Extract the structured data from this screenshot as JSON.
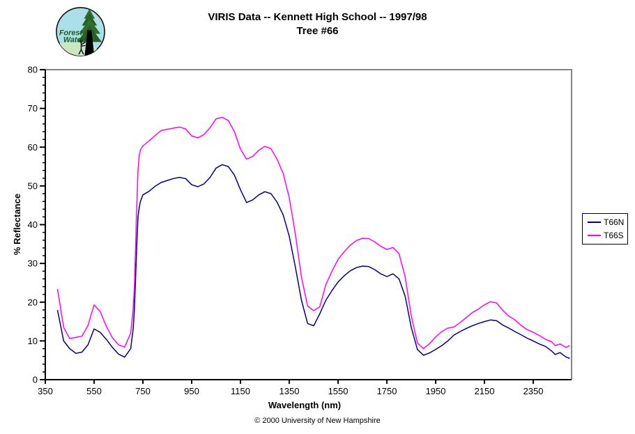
{
  "page": {
    "title_line1": "VIRIS Data -- Kennett High School -- 1997/98",
    "title_line2": "Tree #66",
    "footer": "© 2000 University of New Hampshire"
  },
  "logo": {
    "line1": "Forest",
    "line2": "Watch"
  },
  "chart_data": {
    "type": "line",
    "title": "VIRIS Data -- Kennett High School -- 1997/98 / Tree #66",
    "xlabel": "Wavelength (nm)",
    "ylabel": "% Reflectance",
    "xlim": [
      350,
      2507
    ],
    "ylim": [
      0,
      80
    ],
    "x_ticks": [
      350,
      550,
      750,
      950,
      1150,
      1350,
      1550,
      1750,
      1950,
      2150,
      2350
    ],
    "y_ticks": [
      0,
      10,
      20,
      30,
      40,
      50,
      60,
      70,
      80
    ],
    "y_minor_step": 2,
    "grid": false,
    "legend_position": "right-outside",
    "axis_color": "#000000",
    "border_color": "#848484",
    "x": [
      400,
      425,
      450,
      475,
      500,
      525,
      550,
      575,
      600,
      625,
      650,
      675,
      700,
      710,
      715,
      720,
      725,
      730,
      735,
      740,
      750,
      775,
      800,
      825,
      850,
      875,
      900,
      925,
      950,
      975,
      1000,
      1025,
      1050,
      1075,
      1100,
      1125,
      1150,
      1175,
      1200,
      1225,
      1250,
      1275,
      1300,
      1325,
      1350,
      1375,
      1400,
      1425,
      1450,
      1475,
      1500,
      1525,
      1550,
      1575,
      1600,
      1625,
      1650,
      1675,
      1700,
      1725,
      1750,
      1775,
      1800,
      1825,
      1850,
      1875,
      1900,
      1925,
      1950,
      1975,
      2000,
      2025,
      2050,
      2075,
      2100,
      2125,
      2150,
      2175,
      2200,
      2225,
      2250,
      2275,
      2300,
      2325,
      2350,
      2375,
      2400,
      2425,
      2440,
      2460,
      2485,
      2500
    ],
    "series": [
      {
        "name": "T66N",
        "color": "#000080",
        "values": [
          18.0,
          10.0,
          8.0,
          6.8,
          7.1,
          9.0,
          13.1,
          12.2,
          10.4,
          8.3,
          6.6,
          5.8,
          8.0,
          13.0,
          18.0,
          26.0,
          35.0,
          42.0,
          44.5,
          46.0,
          47.7,
          48.6,
          49.9,
          50.9,
          51.4,
          51.9,
          52.2,
          51.9,
          50.3,
          49.8,
          50.5,
          52.2,
          54.6,
          55.5,
          55.0,
          52.8,
          49.0,
          45.7,
          46.4,
          47.7,
          48.5,
          48.0,
          45.8,
          42.5,
          37.0,
          29.0,
          20.5,
          14.5,
          13.9,
          17.0,
          20.5,
          23.0,
          25.2,
          26.8,
          28.1,
          28.9,
          29.3,
          29.2,
          28.4,
          27.3,
          26.6,
          27.3,
          26.0,
          21.5,
          13.5,
          7.8,
          6.3,
          6.9,
          7.8,
          8.8,
          10.0,
          11.5,
          12.4,
          13.2,
          13.9,
          14.5,
          15.0,
          15.4,
          15.2,
          14.1,
          13.3,
          12.4,
          11.6,
          10.7,
          10.0,
          9.2,
          8.6,
          7.4,
          6.5,
          7.0,
          5.8,
          5.5
        ]
      },
      {
        "name": "T66S",
        "color": "#FF00FF",
        "values": [
          23.4,
          13.5,
          10.6,
          10.9,
          11.2,
          14.0,
          19.3,
          17.6,
          13.8,
          10.8,
          9.0,
          8.4,
          12.0,
          18.0,
          24.0,
          34.0,
          45.0,
          54.0,
          58.0,
          59.3,
          60.3,
          61.6,
          63.0,
          64.3,
          64.6,
          64.9,
          65.2,
          64.7,
          62.9,
          62.4,
          63.2,
          65.0,
          67.3,
          67.7,
          66.9,
          64.0,
          59.5,
          56.9,
          57.6,
          59.2,
          60.2,
          59.6,
          56.9,
          53.2,
          47.0,
          37.5,
          26.5,
          19.0,
          17.8,
          18.8,
          24.5,
          28.0,
          31.0,
          33.0,
          34.7,
          35.9,
          36.5,
          36.4,
          35.6,
          34.4,
          33.6,
          34.1,
          32.5,
          26.5,
          16.5,
          9.5,
          8.0,
          9.3,
          11.0,
          12.4,
          13.3,
          13.6,
          14.7,
          16.0,
          17.3,
          18.2,
          19.3,
          20.1,
          19.8,
          17.9,
          16.4,
          15.4,
          14.0,
          12.9,
          12.2,
          11.4,
          10.4,
          9.8,
          8.8,
          9.2,
          8.3,
          8.8
        ]
      }
    ]
  }
}
